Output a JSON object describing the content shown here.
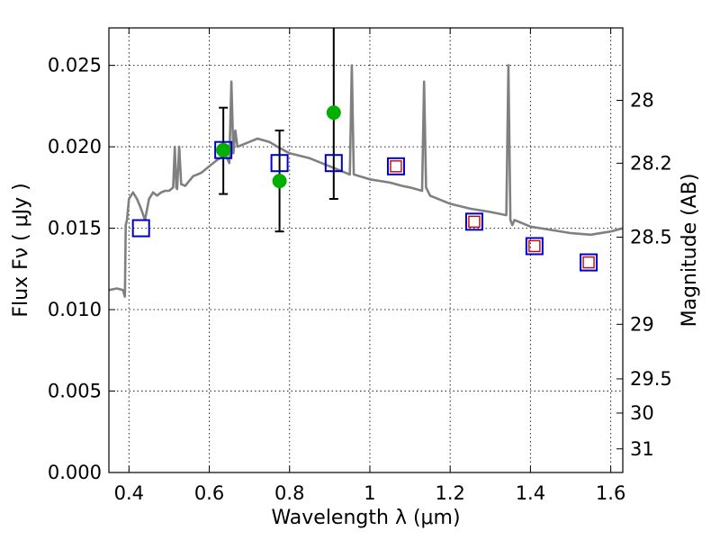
{
  "chart_data": {
    "type": "scatter",
    "xlabel": "Wavelength  λ (μm)",
    "ylabel": "Flux  Fν  ( μJy )",
    "ylabel_right": "Magnitude (AB)",
    "xlim": [
      0.35,
      1.63
    ],
    "ylim": [
      0.0,
      0.0273
    ],
    "grid": true,
    "x_ticks": [
      0.4,
      0.6,
      0.8,
      1.0,
      1.2,
      1.4,
      1.6
    ],
    "x_tick_labels": [
      "0.4",
      "0.6",
      "0.8",
      "1",
      "1.2",
      "1.4",
      "1.6"
    ],
    "y_ticks": [
      0.0,
      0.005,
      0.01,
      0.015,
      0.02,
      0.025
    ],
    "y_tick_labels": [
      "0.000",
      "0.005",
      "0.010",
      "0.015",
      "0.020",
      "0.025"
    ],
    "right_ticks": [
      {
        "flux": 0.02285,
        "label": "28"
      },
      {
        "flux": 0.01899,
        "label": "28.2"
      },
      {
        "flux": 0.01445,
        "label": "28.5"
      },
      {
        "flux": 0.0091,
        "label": "29"
      },
      {
        "flux": 0.00575,
        "label": "29.5"
      },
      {
        "flux": 0.00365,
        "label": "30"
      },
      {
        "flux": 0.00145,
        "label": "31"
      }
    ],
    "series": [
      {
        "kind": "line",
        "color": "#808080",
        "x": [
          0.35,
          0.37,
          0.385,
          0.39,
          0.392,
          0.395,
          0.4,
          0.41,
          0.42,
          0.43,
          0.44,
          0.45,
          0.46,
          0.47,
          0.48,
          0.49,
          0.5,
          0.51,
          0.514,
          0.518,
          0.52,
          0.525,
          0.53,
          0.54,
          0.55,
          0.56,
          0.57,
          0.58,
          0.6,
          0.62,
          0.64,
          0.65,
          0.655,
          0.66,
          0.665,
          0.67,
          0.7,
          0.72,
          0.75,
          0.77,
          0.8,
          0.85,
          0.88,
          0.9,
          0.93,
          0.95,
          0.955,
          0.96,
          1.0,
          1.05,
          1.08,
          1.1,
          1.13,
          1.135,
          1.14,
          1.15,
          1.2,
          1.25,
          1.3,
          1.34,
          1.345,
          1.35,
          1.355,
          1.36,
          1.38,
          1.4,
          1.45,
          1.5,
          1.55,
          1.6,
          1.63
        ],
        "y": [
          0.0112,
          0.0113,
          0.0112,
          0.0108,
          0.0152,
          0.0155,
          0.0168,
          0.0172,
          0.0168,
          0.0162,
          0.0155,
          0.0168,
          0.0172,
          0.017,
          0.0172,
          0.0173,
          0.0173,
          0.0175,
          0.02,
          0.0175,
          0.0174,
          0.02,
          0.0177,
          0.0176,
          0.0179,
          0.0182,
          0.0183,
          0.0184,
          0.0188,
          0.0192,
          0.0195,
          0.019,
          0.024,
          0.0196,
          0.021,
          0.02,
          0.0203,
          0.0205,
          0.0203,
          0.02,
          0.0196,
          0.0193,
          0.019,
          0.0188,
          0.0185,
          0.0183,
          0.025,
          0.0183,
          0.018,
          0.0178,
          0.0176,
          0.0175,
          0.0173,
          0.024,
          0.0175,
          0.017,
          0.0165,
          0.0162,
          0.016,
          0.0158,
          0.025,
          0.0155,
          0.0152,
          0.0155,
          0.0153,
          0.0151,
          0.0149,
          0.0147,
          0.0146,
          0.0148,
          0.015
        ]
      },
      {
        "kind": "points_with_errorbars",
        "color": "#00b000",
        "x": [
          0.635,
          0.775,
          0.91
        ],
        "y": [
          0.0198,
          0.0179,
          0.0221
        ],
        "yerr_low": [
          0.0027,
          0.0031,
          0.0053
        ],
        "yerr_high": [
          0.0026,
          0.0031,
          0.007
        ]
      },
      {
        "kind": "open_squares",
        "color": "#0000cc",
        "x": [
          0.43,
          0.635,
          0.775,
          0.91,
          1.065,
          1.26,
          1.41,
          1.545
        ],
        "y": [
          0.015,
          0.0198,
          0.019,
          0.019,
          0.0188,
          0.0154,
          0.0139,
          0.0129
        ]
      },
      {
        "kind": "open_squares_small",
        "color": "#cc0000",
        "x": [
          1.065,
          1.26,
          1.41,
          1.545
        ],
        "y": [
          0.0188,
          0.0154,
          0.0139,
          0.0129
        ]
      }
    ]
  }
}
